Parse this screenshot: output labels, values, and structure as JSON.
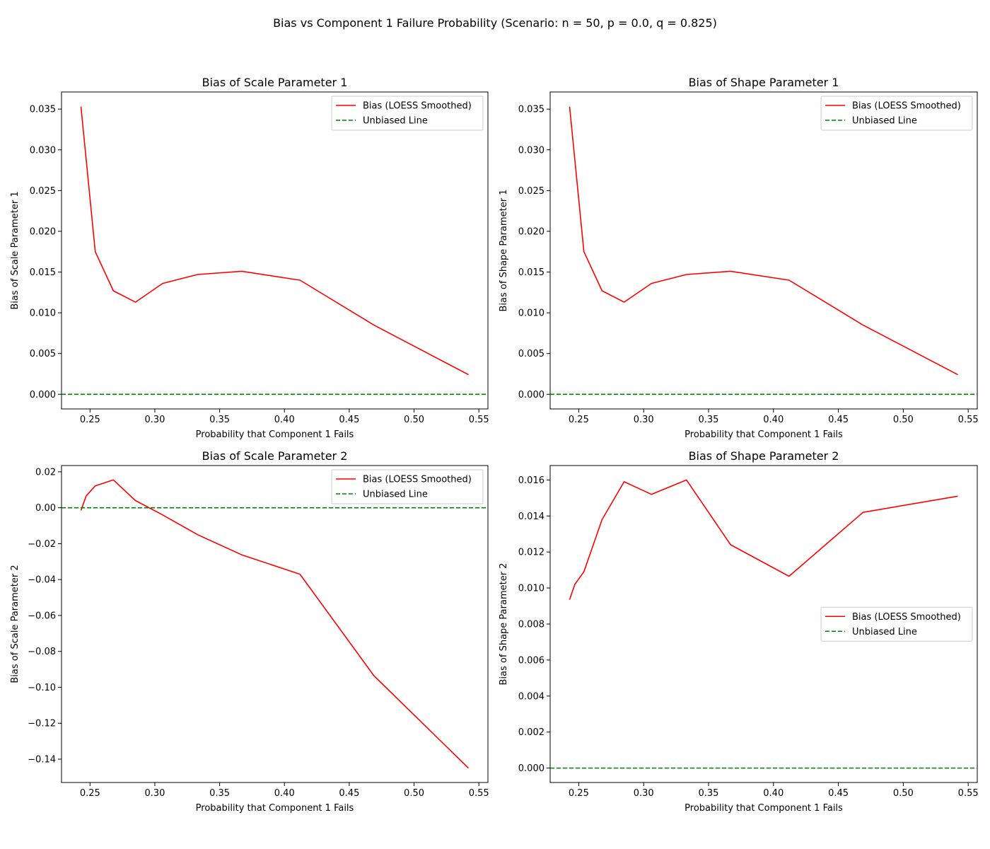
{
  "figure": {
    "title": "Bias vs Component 1 Failure Probability (Scenario: n = 50, p = 0.0, q = 0.825)"
  },
  "colors": {
    "bias_line": "#ff0000",
    "unbiased_line": "#008000",
    "axes": "#000000",
    "legend_border": "#cccccc"
  },
  "chart_data": [
    {
      "type": "line",
      "title": "Bias of Scale Parameter 1",
      "xlabel": "Probability that Component 1 Fails",
      "ylabel": "Bias of Scale Parameter 1",
      "xlim": [
        0.228,
        0.557
      ],
      "ylim": [
        -0.0018,
        0.0371
      ],
      "xticks": [
        "0.25",
        "0.30",
        "0.35",
        "0.40",
        "0.45",
        "0.50",
        "0.55"
      ],
      "yticks": [
        "0.000",
        "0.005",
        "0.010",
        "0.015",
        "0.020",
        "0.025",
        "0.030",
        "0.035"
      ],
      "legend": {
        "placement": "top-right",
        "entries": [
          "Bias (LOESS Smoothed)",
          "Unbiased Line"
        ]
      },
      "grid": false,
      "series": [
        {
          "name": "Bias (LOESS Smoothed)",
          "style": "solid",
          "x": [
            0.243,
            0.254,
            0.268,
            0.285,
            0.306,
            0.333,
            0.367,
            0.412,
            0.469,
            0.542
          ],
          "y": [
            0.0353,
            0.0175,
            0.0127,
            0.0113,
            0.0136,
            0.0147,
            0.0151,
            0.014,
            0.0085,
            0.0024
          ]
        },
        {
          "name": "Unbiased Line",
          "style": "dashed",
          "hline": 0
        }
      ]
    },
    {
      "type": "line",
      "title": "Bias of Shape Parameter 1",
      "xlabel": "Probability that Component 1 Fails",
      "ylabel": "Bias of Shape Parameter 1",
      "xlim": [
        0.228,
        0.557
      ],
      "ylim": [
        -0.0018,
        0.0371
      ],
      "xticks": [
        "0.25",
        "0.30",
        "0.35",
        "0.40",
        "0.45",
        "0.50",
        "0.55"
      ],
      "yticks": [
        "0.000",
        "0.005",
        "0.010",
        "0.015",
        "0.020",
        "0.025",
        "0.030",
        "0.035"
      ],
      "legend": {
        "placement": "top-right",
        "entries": [
          "Bias (LOESS Smoothed)",
          "Unbiased Line"
        ]
      },
      "grid": false,
      "series": [
        {
          "name": "Bias (LOESS Smoothed)",
          "style": "solid",
          "x": [
            0.243,
            0.254,
            0.268,
            0.285,
            0.306,
            0.333,
            0.367,
            0.412,
            0.469,
            0.542
          ],
          "y": [
            0.0353,
            0.0175,
            0.0127,
            0.0113,
            0.0136,
            0.0147,
            0.0151,
            0.014,
            0.0085,
            0.0024
          ]
        },
        {
          "name": "Unbiased Line",
          "style": "dashed",
          "hline": 0
        }
      ]
    },
    {
      "type": "line",
      "title": "Bias of Scale Parameter 2",
      "xlabel": "Probability that Component 1 Fails",
      "ylabel": "Bias of Scale Parameter 2",
      "xlim": [
        0.228,
        0.557
      ],
      "ylim": [
        -0.153,
        0.0235
      ],
      "xticks": [
        "0.25",
        "0.30",
        "0.35",
        "0.40",
        "0.45",
        "0.50",
        "0.55"
      ],
      "yticks": [
        "0.02",
        "0.00",
        "−0.02",
        "−0.04",
        "−0.06",
        "−0.08",
        "−0.10",
        "−0.12",
        "−0.14"
      ],
      "legend": {
        "placement": "top-right",
        "entries": [
          "Bias (LOESS Smoothed)",
          "Unbiased Line"
        ]
      },
      "grid": false,
      "series": [
        {
          "name": "Bias (LOESS Smoothed)",
          "style": "solid",
          "x": [
            0.243,
            0.247,
            0.254,
            0.268,
            0.285,
            0.306,
            0.333,
            0.367,
            0.412,
            0.469,
            0.542
          ],
          "y": [
            -0.0015,
            0.0065,
            0.0122,
            0.0155,
            0.004,
            -0.004,
            -0.015,
            -0.0262,
            -0.037,
            -0.0935,
            -0.145
          ]
        },
        {
          "name": "Unbiased Line",
          "style": "dashed",
          "hline": 0
        }
      ]
    },
    {
      "type": "line",
      "title": "Bias of Shape Parameter 2",
      "xlabel": "Probability that Component 1 Fails",
      "ylabel": "Bias of Shape Parameter 2",
      "xlim": [
        0.228,
        0.557
      ],
      "ylim": [
        -0.0008,
        0.0168
      ],
      "xticks": [
        "0.25",
        "0.30",
        "0.35",
        "0.40",
        "0.45",
        "0.50",
        "0.55"
      ],
      "yticks": [
        "0.000",
        "0.002",
        "0.004",
        "0.006",
        "0.008",
        "0.010",
        "0.012",
        "0.014",
        "0.016"
      ],
      "legend": {
        "placement": "center-right",
        "entries": [
          "Bias (LOESS Smoothed)",
          "Unbiased Line"
        ]
      },
      "grid": false,
      "series": [
        {
          "name": "Bias (LOESS Smoothed)",
          "style": "solid",
          "x": [
            0.243,
            0.247,
            0.254,
            0.268,
            0.285,
            0.306,
            0.333,
            0.367,
            0.412,
            0.469,
            0.542
          ],
          "y": [
            0.00935,
            0.0102,
            0.0109,
            0.0138,
            0.0159,
            0.0152,
            0.016,
            0.0124,
            0.01065,
            0.0142,
            0.0151
          ]
        },
        {
          "name": "Unbiased Line",
          "style": "dashed",
          "hline": 0
        }
      ]
    }
  ]
}
